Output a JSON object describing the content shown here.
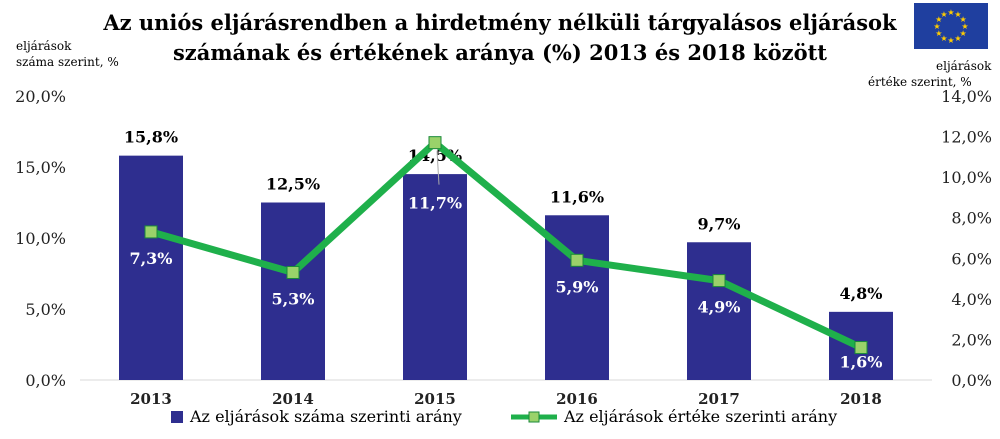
{
  "chart_data": {
    "type": "bar",
    "title_line1": "Az uniós eljárásrendben a  hirdetmény nélküli tárgyalásos eljárások",
    "title_line2": "számának és értékének aránya (%) 2013 és 2018 között",
    "y_left_label_line1": "eljárások",
    "y_left_label_line2": "száma szerint, %",
    "y_right_label_line1": "eljárások",
    "y_right_label_line2": "értéke szerint, %",
    "categories": [
      "2013",
      "2014",
      "2015",
      "2016",
      "2017",
      "2018"
    ],
    "y_left_ticks": [
      "0,0%",
      "5,0%",
      "10,0%",
      "15,0%",
      "20,0%"
    ],
    "y_right_ticks": [
      "0,0%",
      "2,0%",
      "4,0%",
      "6,0%",
      "8,0%",
      "10,0%",
      "12,0%",
      "14,0%"
    ],
    "y_left_lim": [
      0,
      20
    ],
    "y_right_lim": [
      0,
      14
    ],
    "grid": false,
    "legend_position": "bottom",
    "series": [
      {
        "name": "Az eljárások száma szerinti arány",
        "kind": "bar",
        "axis": "left",
        "color": "#2e2e8f",
        "values": [
          15.8,
          12.5,
          14.5,
          11.6,
          9.7,
          4.8
        ],
        "labels": [
          "15,8%",
          "12,5%",
          "14,5%",
          "11,6%",
          "9,7%",
          "4,8%"
        ]
      },
      {
        "name": "Az eljárások értéke szerinti arány",
        "kind": "line",
        "axis": "right",
        "color": "#1fb04b",
        "marker_color": "#9ad26a",
        "values": [
          7.3,
          5.3,
          11.7,
          5.9,
          4.9,
          1.6
        ],
        "labels": [
          "7,3%",
          "5,3%",
          "11,7%",
          "5,9%",
          "4,9%",
          "1,6%"
        ]
      }
    ]
  },
  "flag": {
    "background": "#1f3f9f",
    "stars": "#ffcc00"
  }
}
